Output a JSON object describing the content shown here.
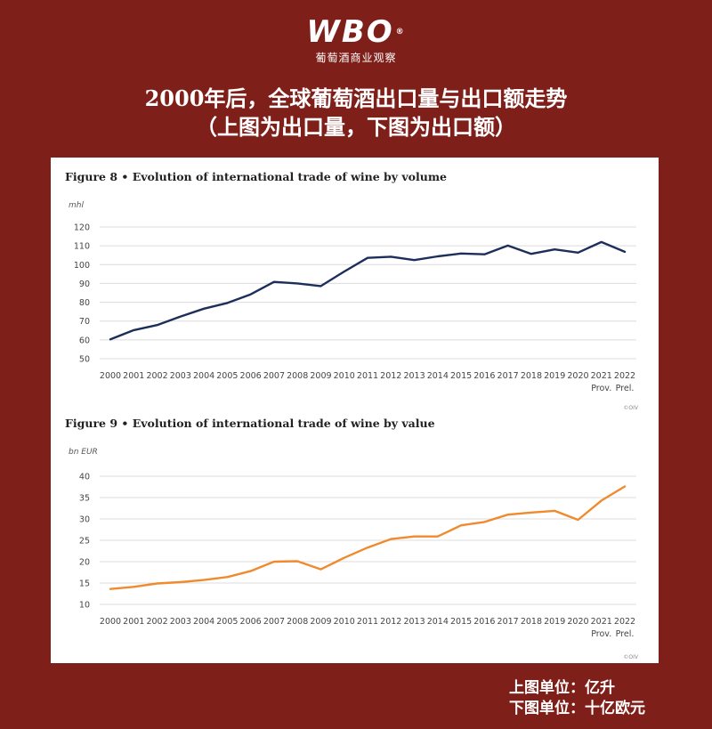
{
  "logo": {
    "mark": "WBO",
    "reg": "®",
    "subtitle": "葡萄酒商业观察"
  },
  "headline": {
    "line1": "2000年后，全球葡萄酒出口量与出口额走势",
    "line2": "（上图为出口量，下图为出口额）"
  },
  "footer": {
    "line1": "上图单位：亿升",
    "line2": "下图单位：十亿欧元"
  },
  "colors": {
    "background": "#7f1f1a",
    "volume_line": "#1d2e5a",
    "value_line": "#f08a2e"
  },
  "chart_data": [
    {
      "type": "line",
      "title": "Figure 8 • Evolution of international trade of wine by volume",
      "unit": "mhl",
      "source": "©OIV",
      "categories": [
        "2000",
        "2001",
        "2002",
        "2003",
        "2004",
        "2005",
        "2006",
        "2007",
        "2008",
        "2009",
        "2010",
        "2011",
        "2012",
        "2013",
        "2014",
        "2015",
        "2016",
        "2017",
        "2018",
        "2019",
        "2020",
        "2021",
        "2022"
      ],
      "category_sublabels": {
        "2021": "Prov.",
        "2022": "Prel."
      },
      "series": [
        {
          "values": [
            60.3,
            65.2,
            67.9,
            72.4,
            76.6,
            79.6,
            84.2,
            90.8,
            90.0,
            88.6,
            96.3,
            103.6,
            104.2,
            102.4,
            104.4,
            105.9,
            105.5,
            110.1,
            105.7,
            108.1,
            106.4,
            112.0,
            106.8
          ]
        }
      ],
      "ylim": [
        50,
        120
      ],
      "yticks": [
        50,
        60,
        70,
        80,
        90,
        100,
        110,
        120
      ],
      "grid": true
    },
    {
      "type": "line",
      "title": "Figure 9 • Evolution of international trade of wine by value",
      "unit": "bn EUR",
      "source": "©OIV",
      "categories": [
        "2000",
        "2001",
        "2002",
        "2003",
        "2004",
        "2005",
        "2006",
        "2007",
        "2008",
        "2009",
        "2010",
        "2011",
        "2012",
        "2013",
        "2014",
        "2015",
        "2016",
        "2017",
        "2018",
        "2019",
        "2020",
        "2021",
        "2022"
      ],
      "category_sublabels": {
        "2021": "Prov.",
        "2022": "Prel."
      },
      "series": [
        {
          "values": [
            13.6,
            14.1,
            14.9,
            15.2,
            15.7,
            16.4,
            17.8,
            20.0,
            20.1,
            18.2,
            20.9,
            23.3,
            25.3,
            25.9,
            25.9,
            28.5,
            29.3,
            31.0,
            31.5,
            31.9,
            29.8,
            34.3,
            37.6
          ]
        }
      ],
      "ylim": [
        10,
        40
      ],
      "yticks": [
        10,
        15,
        20,
        25,
        30,
        35,
        40
      ],
      "grid": true
    }
  ]
}
